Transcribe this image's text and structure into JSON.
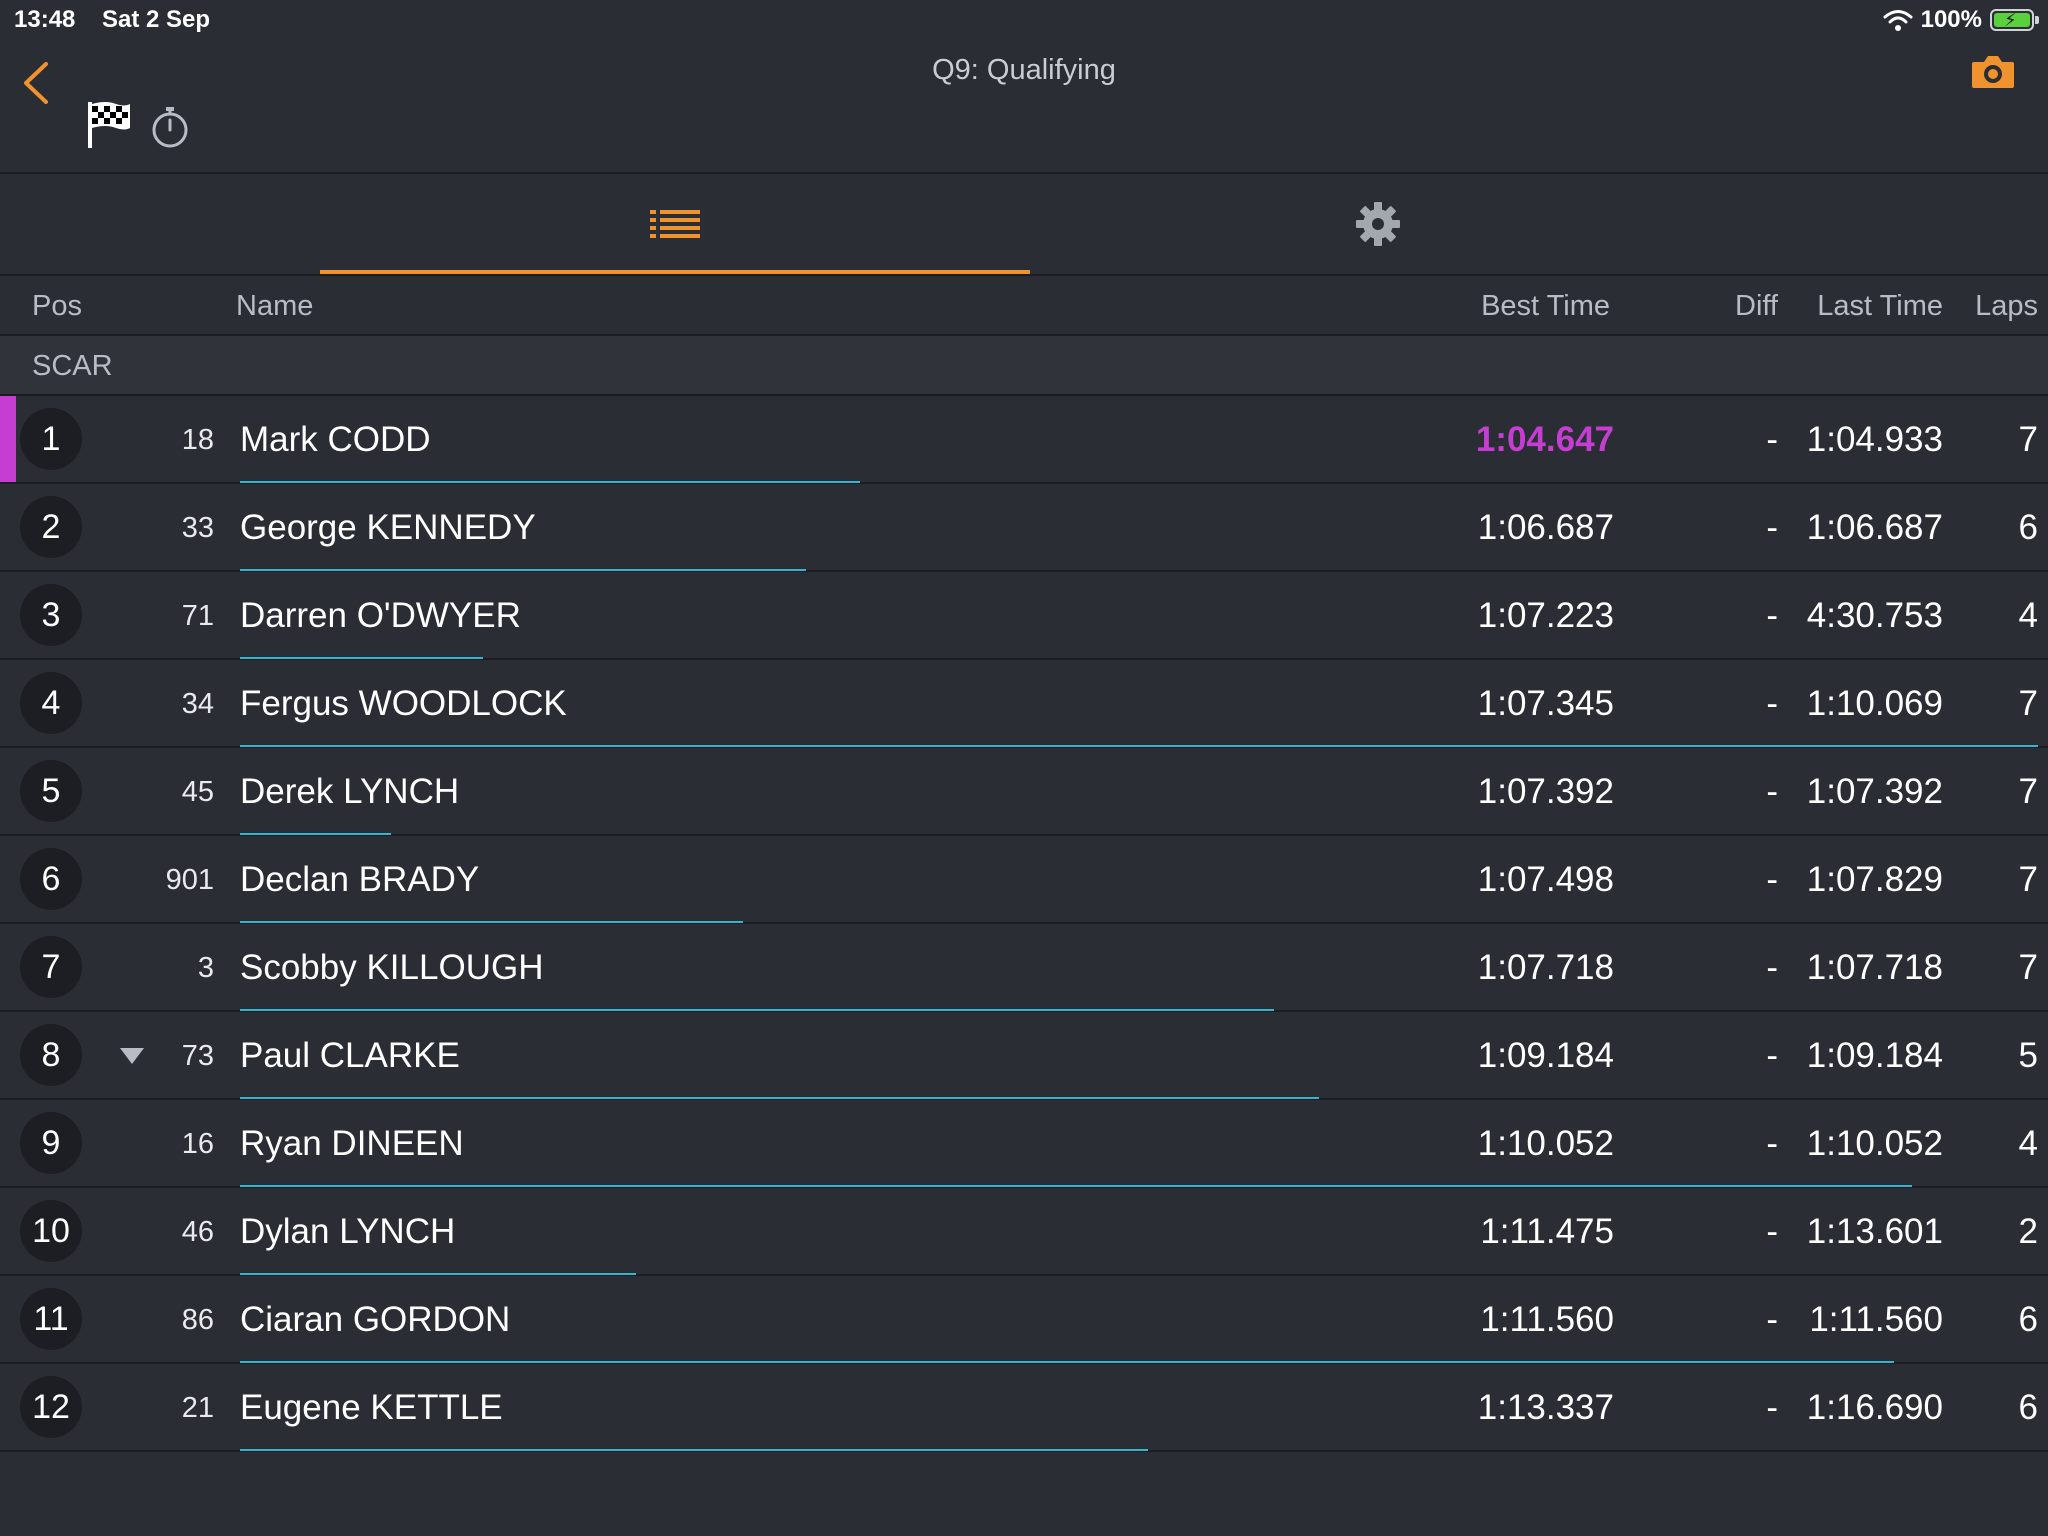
{
  "status_bar": {
    "time": "13:48",
    "date": "Sat 2 Sep",
    "battery": "100%",
    "battery_level": 1.0
  },
  "nav": {
    "title": "Q9: Qualifying"
  },
  "header": {
    "pos": "Pos",
    "name": "Name",
    "best": "Best Time",
    "diff": "Diff",
    "last": "Last Time",
    "laps": "Laps"
  },
  "group": "SCAR",
  "colors": {
    "accent": "#f0922e",
    "fastest": "#c53ed1",
    "progress": "#3bb3cd"
  },
  "rows": [
    {
      "pos": "1",
      "number": "18",
      "name": "Mark CODD",
      "best": "1:04.647",
      "diff": "-",
      "last": "1:04.933",
      "laps": "7",
      "fastest": true,
      "progress": 0.345
    },
    {
      "pos": "2",
      "number": "33",
      "name": "George KENNEDY",
      "best": "1:06.687",
      "diff": "-",
      "last": "1:06.687",
      "laps": "6",
      "progress": 0.315
    },
    {
      "pos": "3",
      "number": "71",
      "name": "Darren O'DWYER",
      "best": "1:07.223",
      "diff": "-",
      "last": "4:30.753",
      "laps": "4",
      "progress": 0.135
    },
    {
      "pos": "4",
      "number": "34",
      "name": "Fergus WOODLOCK",
      "best": "1:07.345",
      "diff": "-",
      "last": "1:10.069",
      "laps": "7",
      "progress": 1.0
    },
    {
      "pos": "5",
      "number": "45",
      "name": "Derek LYNCH",
      "best": "1:07.392",
      "diff": "-",
      "last": "1:07.392",
      "laps": "7",
      "progress": 0.084
    },
    {
      "pos": "6",
      "number": "901",
      "name": "Declan BRADY",
      "best": "1:07.498",
      "diff": "-",
      "last": "1:07.829",
      "laps": "7",
      "progress": 0.28
    },
    {
      "pos": "7",
      "number": "3",
      "name": "Scobby KILLOUGH",
      "best": "1:07.718",
      "diff": "-",
      "last": "1:07.718",
      "laps": "7",
      "progress": 0.575
    },
    {
      "pos": "8",
      "number": "73",
      "name": "Paul CLARKE",
      "best": "1:09.184",
      "diff": "-",
      "last": "1:09.184",
      "laps": "5",
      "dropped": true,
      "progress": 0.6
    },
    {
      "pos": "9",
      "number": "16",
      "name": "Ryan DINEEN",
      "best": "1:10.052",
      "diff": "-",
      "last": "1:10.052",
      "laps": "4",
      "progress": 0.93
    },
    {
      "pos": "10",
      "number": "46",
      "name": "Dylan LYNCH",
      "best": "1:11.475",
      "diff": "-",
      "last": "1:13.601",
      "laps": "2",
      "progress": 0.22
    },
    {
      "pos": "11",
      "number": "86",
      "name": "Ciaran GORDON",
      "best": "1:11.560",
      "diff": "-",
      "last": "1:11.560",
      "laps": "6",
      "progress": 0.92
    },
    {
      "pos": "12",
      "number": "21",
      "name": "Eugene KETTLE",
      "best": "1:13.337",
      "diff": "-",
      "last": "1:16.690",
      "laps": "6",
      "progress": 0.505
    }
  ]
}
